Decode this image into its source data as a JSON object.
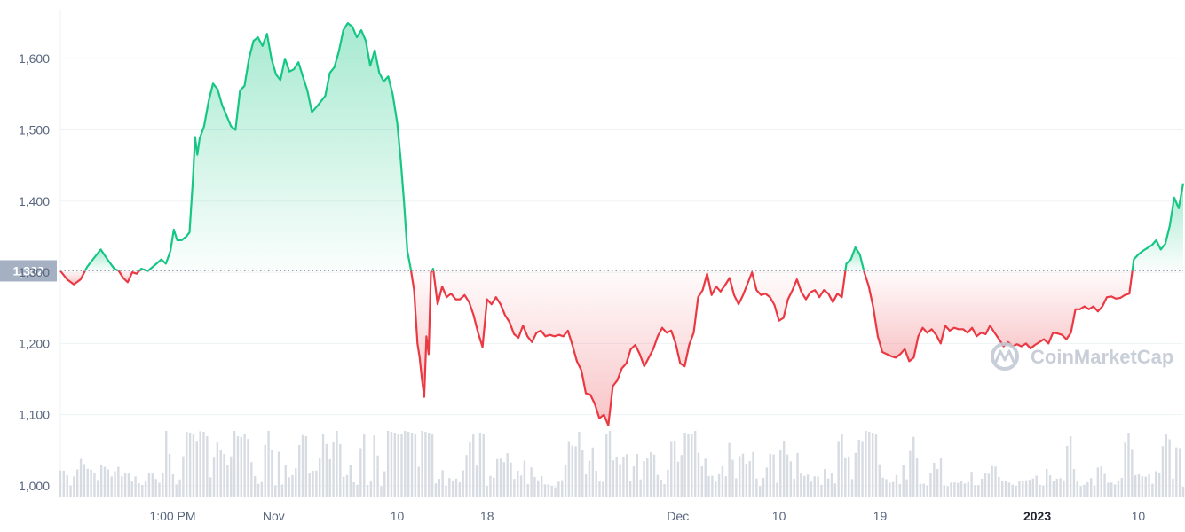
{
  "chart_data": {
    "type": "area",
    "baseline_value": 1302,
    "baseline_label": "1,302",
    "ylim": [
      985,
      1670
    ],
    "y_ticks": [
      {
        "value": 1000,
        "label": "1,000"
      },
      {
        "value": 1100,
        "label": "1,100"
      },
      {
        "value": 1200,
        "label": "1,200"
      },
      {
        "value": 1300,
        "label": "1,300"
      },
      {
        "value": 1400,
        "label": "1,400"
      },
      {
        "value": 1500,
        "label": "1,500"
      },
      {
        "value": 1600,
        "label": "1,600"
      }
    ],
    "x_ticks": [
      {
        "t": 0.1,
        "label": "1:00 PM",
        "bold": false
      },
      {
        "t": 0.19,
        "label": "Nov",
        "bold": false
      },
      {
        "t": 0.3,
        "label": "10",
        "bold": false
      },
      {
        "t": 0.38,
        "label": "18",
        "bold": false
      },
      {
        "t": 0.55,
        "label": "Dec",
        "bold": false
      },
      {
        "t": 0.64,
        "label": "10",
        "bold": false
      },
      {
        "t": 0.73,
        "label": "19",
        "bold": false
      },
      {
        "t": 0.87,
        "label": "2023",
        "bold": true
      },
      {
        "t": 0.96,
        "label": "10",
        "bold": false
      }
    ],
    "price": [
      [
        0.0,
        1302
      ],
      [
        0.006,
        1290
      ],
      [
        0.012,
        1283
      ],
      [
        0.018,
        1290
      ],
      [
        0.024,
        1308
      ],
      [
        0.03,
        1320
      ],
      [
        0.036,
        1332
      ],
      [
        0.042,
        1318
      ],
      [
        0.048,
        1305
      ],
      [
        0.052,
        1302
      ],
      [
        0.056,
        1292
      ],
      [
        0.06,
        1286
      ],
      [
        0.064,
        1300
      ],
      [
        0.068,
        1298
      ],
      [
        0.072,
        1305
      ],
      [
        0.078,
        1302
      ],
      [
        0.084,
        1310
      ],
      [
        0.09,
        1318
      ],
      [
        0.094,
        1312
      ],
      [
        0.098,
        1330
      ],
      [
        0.101,
        1360
      ],
      [
        0.104,
        1345
      ],
      [
        0.108,
        1345
      ],
      [
        0.112,
        1350
      ],
      [
        0.115,
        1356
      ],
      [
        0.118,
        1430
      ],
      [
        0.12,
        1490
      ],
      [
        0.122,
        1465
      ],
      [
        0.124,
        1488
      ],
      [
        0.128,
        1505
      ],
      [
        0.132,
        1540
      ],
      [
        0.136,
        1565
      ],
      [
        0.14,
        1557
      ],
      [
        0.144,
        1535
      ],
      [
        0.148,
        1520
      ],
      [
        0.152,
        1505
      ],
      [
        0.156,
        1500
      ],
      [
        0.16,
        1555
      ],
      [
        0.164,
        1562
      ],
      [
        0.168,
        1600
      ],
      [
        0.172,
        1625
      ],
      [
        0.176,
        1630
      ],
      [
        0.18,
        1618
      ],
      [
        0.184,
        1635
      ],
      [
        0.188,
        1600
      ],
      [
        0.192,
        1578
      ],
      [
        0.196,
        1570
      ],
      [
        0.2,
        1600
      ],
      [
        0.204,
        1582
      ],
      [
        0.208,
        1585
      ],
      [
        0.212,
        1595
      ],
      [
        0.216,
        1575
      ],
      [
        0.22,
        1555
      ],
      [
        0.224,
        1525
      ],
      [
        0.228,
        1532
      ],
      [
        0.232,
        1540
      ],
      [
        0.236,
        1548
      ],
      [
        0.24,
        1580
      ],
      [
        0.244,
        1588
      ],
      [
        0.248,
        1610
      ],
      [
        0.252,
        1640
      ],
      [
        0.256,
        1650
      ],
      [
        0.26,
        1645
      ],
      [
        0.264,
        1630
      ],
      [
        0.268,
        1640
      ],
      [
        0.272,
        1625
      ],
      [
        0.276,
        1590
      ],
      [
        0.28,
        1612
      ],
      [
        0.284,
        1580
      ],
      [
        0.288,
        1568
      ],
      [
        0.292,
        1575
      ],
      [
        0.296,
        1550
      ],
      [
        0.3,
        1510
      ],
      [
        0.303,
        1460
      ],
      [
        0.306,
        1400
      ],
      [
        0.309,
        1330
      ],
      [
        0.312,
        1305
      ],
      [
        0.315,
        1275
      ],
      [
        0.318,
        1200
      ],
      [
        0.32,
        1180
      ],
      [
        0.322,
        1150
      ],
      [
        0.324,
        1125
      ],
      [
        0.326,
        1210
      ],
      [
        0.328,
        1185
      ],
      [
        0.33,
        1300
      ],
      [
        0.332,
        1305
      ],
      [
        0.336,
        1255
      ],
      [
        0.34,
        1280
      ],
      [
        0.344,
        1265
      ],
      [
        0.348,
        1270
      ],
      [
        0.352,
        1262
      ],
      [
        0.356,
        1262
      ],
      [
        0.36,
        1268
      ],
      [
        0.364,
        1258
      ],
      [
        0.368,
        1240
      ],
      [
        0.372,
        1215
      ],
      [
        0.376,
        1195
      ],
      [
        0.38,
        1262
      ],
      [
        0.384,
        1255
      ],
      [
        0.388,
        1265
      ],
      [
        0.392,
        1255
      ],
      [
        0.396,
        1240
      ],
      [
        0.4,
        1230
      ],
      [
        0.404,
        1213
      ],
      [
        0.408,
        1208
      ],
      [
        0.412,
        1225
      ],
      [
        0.416,
        1210
      ],
      [
        0.42,
        1202
      ],
      [
        0.424,
        1215
      ],
      [
        0.428,
        1218
      ],
      [
        0.432,
        1210
      ],
      [
        0.436,
        1212
      ],
      [
        0.44,
        1210
      ],
      [
        0.444,
        1212
      ],
      [
        0.448,
        1210
      ],
      [
        0.452,
        1218
      ],
      [
        0.456,
        1198
      ],
      [
        0.46,
        1175
      ],
      [
        0.464,
        1162
      ],
      [
        0.468,
        1130
      ],
      [
        0.472,
        1128
      ],
      [
        0.476,
        1115
      ],
      [
        0.48,
        1095
      ],
      [
        0.484,
        1100
      ],
      [
        0.488,
        1085
      ],
      [
        0.492,
        1140
      ],
      [
        0.496,
        1148
      ],
      [
        0.5,
        1165
      ],
      [
        0.504,
        1172
      ],
      [
        0.508,
        1192
      ],
      [
        0.512,
        1198
      ],
      [
        0.516,
        1185
      ],
      [
        0.52,
        1168
      ],
      [
        0.524,
        1180
      ],
      [
        0.528,
        1192
      ],
      [
        0.532,
        1210
      ],
      [
        0.536,
        1222
      ],
      [
        0.54,
        1215
      ],
      [
        0.544,
        1218
      ],
      [
        0.548,
        1200
      ],
      [
        0.552,
        1172
      ],
      [
        0.556,
        1168
      ],
      [
        0.56,
        1198
      ],
      [
        0.564,
        1215
      ],
      [
        0.568,
        1265
      ],
      [
        0.572,
        1275
      ],
      [
        0.576,
        1298
      ],
      [
        0.58,
        1268
      ],
      [
        0.584,
        1280
      ],
      [
        0.588,
        1273
      ],
      [
        0.592,
        1282
      ],
      [
        0.596,
        1292
      ],
      [
        0.6,
        1268
      ],
      [
        0.604,
        1255
      ],
      [
        0.608,
        1268
      ],
      [
        0.612,
        1284
      ],
      [
        0.616,
        1300
      ],
      [
        0.62,
        1275
      ],
      [
        0.624,
        1268
      ],
      [
        0.628,
        1270
      ],
      [
        0.632,
        1265
      ],
      [
        0.636,
        1254
      ],
      [
        0.64,
        1232
      ],
      [
        0.644,
        1236
      ],
      [
        0.648,
        1262
      ],
      [
        0.652,
        1275
      ],
      [
        0.656,
        1290
      ],
      [
        0.66,
        1272
      ],
      [
        0.664,
        1262
      ],
      [
        0.668,
        1272
      ],
      [
        0.672,
        1275
      ],
      [
        0.676,
        1265
      ],
      [
        0.68,
        1275
      ],
      [
        0.684,
        1270
      ],
      [
        0.688,
        1258
      ],
      [
        0.692,
        1270
      ],
      [
        0.696,
        1265
      ],
      [
        0.7,
        1312
      ],
      [
        0.704,
        1318
      ],
      [
        0.708,
        1335
      ],
      [
        0.712,
        1325
      ],
      [
        0.716,
        1300
      ],
      [
        0.72,
        1280
      ],
      [
        0.724,
        1250
      ],
      [
        0.728,
        1210
      ],
      [
        0.732,
        1188
      ],
      [
        0.736,
        1185
      ],
      [
        0.74,
        1182
      ],
      [
        0.744,
        1180
      ],
      [
        0.748,
        1185
      ],
      [
        0.752,
        1192
      ],
      [
        0.756,
        1175
      ],
      [
        0.76,
        1180
      ],
      [
        0.764,
        1210
      ],
      [
        0.768,
        1222
      ],
      [
        0.772,
        1215
      ],
      [
        0.776,
        1220
      ],
      [
        0.78,
        1212
      ],
      [
        0.784,
        1200
      ],
      [
        0.788,
        1225
      ],
      [
        0.792,
        1218
      ],
      [
        0.796,
        1222
      ],
      [
        0.8,
        1220
      ],
      [
        0.804,
        1220
      ],
      [
        0.808,
        1215
      ],
      [
        0.812,
        1222
      ],
      [
        0.816,
        1210
      ],
      [
        0.82,
        1215
      ],
      [
        0.824,
        1213
      ],
      [
        0.828,
        1225
      ],
      [
        0.832,
        1215
      ],
      [
        0.836,
        1206
      ],
      [
        0.84,
        1196
      ],
      [
        0.844,
        1202
      ],
      [
        0.848,
        1196
      ],
      [
        0.852,
        1199
      ],
      [
        0.856,
        1196
      ],
      [
        0.86,
        1200
      ],
      [
        0.864,
        1193
      ],
      [
        0.868,
        1198
      ],
      [
        0.872,
        1202
      ],
      [
        0.876,
        1206
      ],
      [
        0.88,
        1200
      ],
      [
        0.884,
        1215
      ],
      [
        0.888,
        1214
      ],
      [
        0.892,
        1212
      ],
      [
        0.896,
        1206
      ],
      [
        0.9,
        1215
      ],
      [
        0.904,
        1248
      ],
      [
        0.908,
        1248
      ],
      [
        0.912,
        1252
      ],
      [
        0.916,
        1248
      ],
      [
        0.92,
        1252
      ],
      [
        0.924,
        1245
      ],
      [
        0.928,
        1252
      ],
      [
        0.932,
        1265
      ],
      [
        0.936,
        1266
      ],
      [
        0.94,
        1263
      ],
      [
        0.944,
        1264
      ],
      [
        0.948,
        1268
      ],
      [
        0.952,
        1270
      ],
      [
        0.956,
        1318
      ],
      [
        0.96,
        1325
      ],
      [
        0.964,
        1330
      ],
      [
        0.968,
        1334
      ],
      [
        0.972,
        1338
      ],
      [
        0.976,
        1345
      ],
      [
        0.98,
        1332
      ],
      [
        0.984,
        1340
      ],
      [
        0.988,
        1365
      ],
      [
        0.992,
        1405
      ],
      [
        0.996,
        1390
      ],
      [
        1.0,
        1425
      ]
    ]
  }
}
